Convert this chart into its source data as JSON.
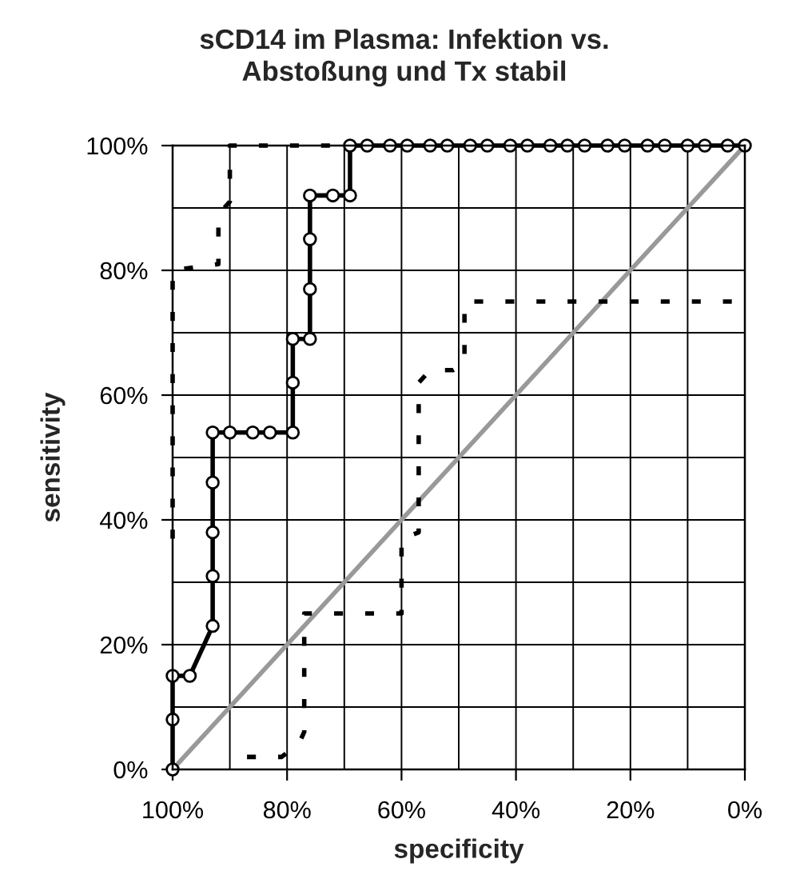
{
  "chart_data": {
    "type": "line",
    "title": "sCD14 im Plasma: Infektion vs.\nAbstoßung und Tx stabil",
    "xlabel": "specificity",
    "ylabel": "sensitivity",
    "xlim": [
      100,
      0
    ],
    "ylim": [
      0,
      100
    ],
    "xticks": [
      {
        "value": 100,
        "label": "100%"
      },
      {
        "value": 90,
        "label": null
      },
      {
        "value": 80,
        "label": "80%"
      },
      {
        "value": 70,
        "label": null
      },
      {
        "value": 60,
        "label": "60%"
      },
      {
        "value": 50,
        "label": null
      },
      {
        "value": 40,
        "label": "40%"
      },
      {
        "value": 30,
        "label": null
      },
      {
        "value": 20,
        "label": "20%"
      },
      {
        "value": 10,
        "label": null
      },
      {
        "value": 0,
        "label": "0%"
      }
    ],
    "yticks": [
      {
        "value": 0,
        "label": "0%"
      },
      {
        "value": 10,
        "label": null
      },
      {
        "value": 20,
        "label": "20%"
      },
      {
        "value": 30,
        "label": null
      },
      {
        "value": 40,
        "label": "40%"
      },
      {
        "value": 50,
        "label": null
      },
      {
        "value": 60,
        "label": "60%"
      },
      {
        "value": 70,
        "label": null
      },
      {
        "value": 80,
        "label": "80%"
      },
      {
        "value": 90,
        "label": null
      },
      {
        "value": 100,
        "label": "100%"
      }
    ],
    "grid": true,
    "series": [
      {
        "color": "#999999",
        "line_style": "solid",
        "x": [
          100,
          0
        ],
        "values": [
          0,
          100
        ]
      },
      {
        "color": "#000000",
        "line_style": "dashed",
        "x": [
          100,
          100,
          92,
          92,
          90,
          90,
          71
        ],
        "values": [
          37,
          80,
          81,
          89,
          91,
          100,
          100
        ]
      },
      {
        "color": "#000000",
        "line_style": "dashed",
        "x": [
          87,
          81,
          78,
          77,
          77,
          60,
          60,
          57,
          57,
          55,
          51,
          49,
          49,
          0
        ],
        "values": [
          2,
          2,
          4,
          6,
          25,
          25,
          37,
          38,
          62,
          64,
          64,
          65,
          75,
          75
        ]
      },
      {
        "color": "#000000",
        "line_style": "solid",
        "marker": "circle",
        "x": [
          100,
          100,
          100,
          97,
          93,
          93,
          93,
          93,
          93,
          90,
          86,
          83,
          79,
          79,
          79,
          76,
          76,
          76,
          76,
          72,
          69,
          69,
          66,
          62,
          59,
          55,
          52,
          48,
          45,
          41,
          38,
          34,
          31,
          28,
          24,
          21,
          17,
          14,
          10,
          7,
          3,
          0
        ],
        "values": [
          0,
          8,
          15,
          15,
          23,
          31,
          38,
          46,
          54,
          54,
          54,
          54,
          54,
          62,
          69,
          69,
          77,
          85,
          92,
          92,
          92,
          100,
          100,
          100,
          100,
          100,
          100,
          100,
          100,
          100,
          100,
          100,
          100,
          100,
          100,
          100,
          100,
          100,
          100,
          100,
          100,
          100
        ]
      }
    ]
  }
}
